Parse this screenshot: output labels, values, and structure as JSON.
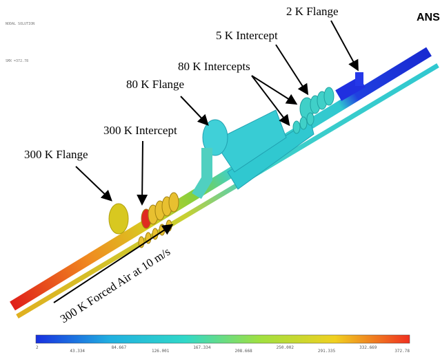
{
  "header": {
    "title": "NODAL SOLUTION",
    "max": "SMX =372.78",
    "logo": "ANS"
  },
  "labels": {
    "flange_2k": "2 K Flange",
    "intercept_5k": "5 K Intercept",
    "intercepts_80k": "80 K Intercepts",
    "flange_80k": "80 K Flange",
    "intercept_300k": "300 K Intercept",
    "flange_300k": "300 K Flange",
    "forced_air": "300 K Forced Air at 10 m/s"
  },
  "legend": {
    "ticks": [
      2,
      43.334,
      84.667,
      126.001,
      167.334,
      208.668,
      250.002,
      291.335,
      332.669,
      372.78
    ]
  }
}
